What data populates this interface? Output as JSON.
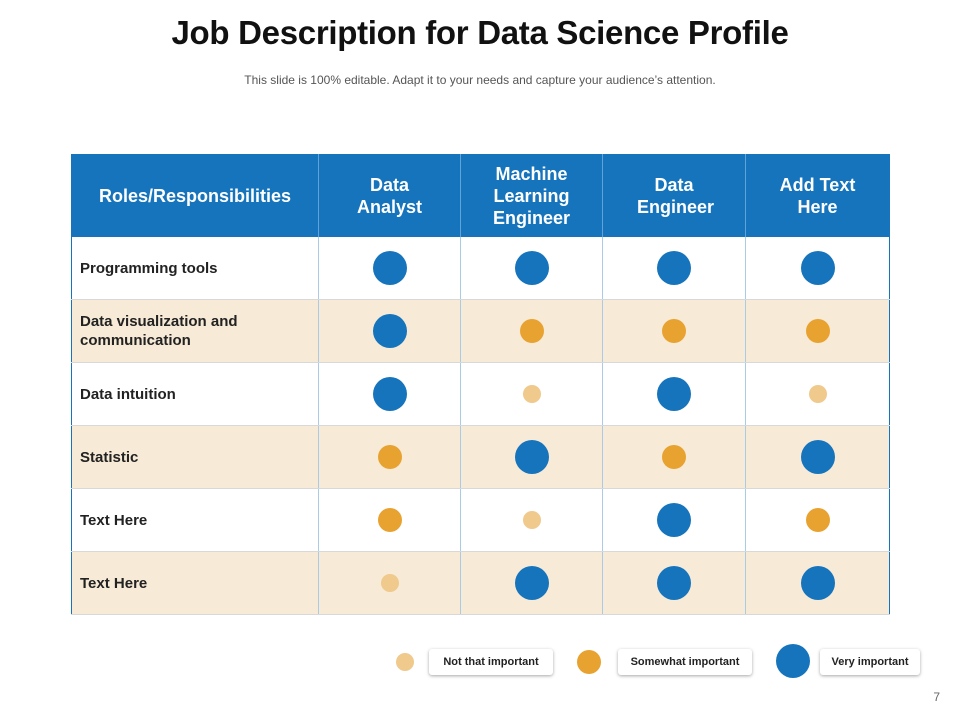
{
  "slide": {
    "title": "Job Description for Data Science Profile",
    "subtitle": "This slide is 100% editable. Adapt it to your needs and capture your audience’s attention.",
    "page_number": "7"
  },
  "colors": {
    "header_bg": "#1674bd",
    "very_important": "#1674bd",
    "somewhat_important": "#e8a230",
    "not_that_important": "#f0c98c",
    "row_alt_bg": "#f7ead6"
  },
  "table": {
    "header": {
      "roles": "Roles/Responsibilities",
      "col1": "Data Analyst",
      "col2": "Machine Learning Engineer",
      "col3": "Data Engineer",
      "col4": "Add Text Here"
    },
    "rows": [
      {
        "label": "Programming tools",
        "levels": [
          "very",
          "very",
          "very",
          "very"
        ]
      },
      {
        "label": "Data visualization and communication",
        "levels": [
          "very",
          "some",
          "some",
          "some"
        ]
      },
      {
        "label": "Data intuition",
        "levels": [
          "very",
          "not",
          "very",
          "not"
        ]
      },
      {
        "label": "Statistic",
        "levels": [
          "some",
          "very",
          "some",
          "very"
        ]
      },
      {
        "label": "Text Here",
        "levels": [
          "some",
          "not",
          "very",
          "some"
        ]
      },
      {
        "label": "Text Here",
        "levels": [
          "not",
          "very",
          "very",
          "very"
        ]
      }
    ]
  },
  "legend": {
    "not": "Not that important",
    "some": "Somewhat important",
    "very": "Very important"
  }
}
